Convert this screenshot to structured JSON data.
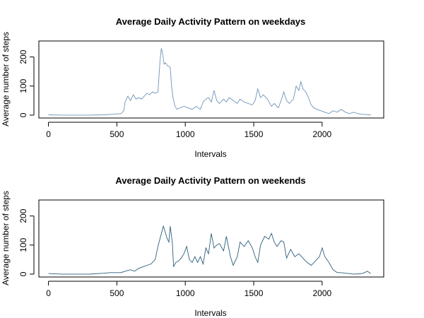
{
  "chart_data": [
    {
      "type": "line",
      "title": "Average Daily Activity Pattern on weekdays",
      "xlabel": "Intervals",
      "ylabel": "Average number of steps",
      "xlim": [
        -70,
        2450
      ],
      "ylim": [
        -10,
        255
      ],
      "x_ticks": [
        0,
        500,
        1000,
        1500,
        2000
      ],
      "y_ticks": [
        0,
        100,
        200
      ],
      "grid": false,
      "series": [
        {
          "color": "#6e93b8",
          "x": [
            0,
            100,
            200,
            300,
            400,
            470,
            500,
            530,
            550,
            560,
            580,
            600,
            620,
            640,
            660,
            680,
            700,
            720,
            740,
            760,
            780,
            800,
            815,
            825,
            835,
            845,
            855,
            870,
            890,
            900,
            910,
            925,
            940,
            960,
            990,
            1020,
            1050,
            1080,
            1110,
            1130,
            1150,
            1170,
            1190,
            1210,
            1230,
            1250,
            1280,
            1300,
            1320,
            1350,
            1380,
            1400,
            1430,
            1460,
            1490,
            1510,
            1530,
            1550,
            1570,
            1600,
            1630,
            1650,
            1680,
            1700,
            1720,
            1740,
            1760,
            1790,
            1810,
            1830,
            1845,
            1860,
            1880,
            1900,
            1920,
            1940,
            1960,
            1990,
            2020,
            2050,
            2080,
            2110,
            2140,
            2170,
            2200,
            2230,
            2260,
            2290,
            2320,
            2355
          ],
          "y": [
            1,
            0,
            0,
            0,
            1,
            3,
            4,
            5,
            15,
            45,
            65,
            50,
            70,
            55,
            60,
            55,
            65,
            75,
            70,
            80,
            75,
            80,
            185,
            230,
            210,
            175,
            180,
            170,
            165,
            100,
            60,
            30,
            20,
            25,
            30,
            25,
            20,
            30,
            20,
            45,
            55,
            60,
            45,
            85,
            50,
            40,
            55,
            45,
            60,
            50,
            40,
            55,
            45,
            40,
            35,
            50,
            90,
            60,
            70,
            55,
            30,
            40,
            25,
            50,
            80,
            50,
            40,
            55,
            100,
            85,
            115,
            90,
            80,
            60,
            35,
            25,
            20,
            15,
            10,
            5,
            15,
            10,
            20,
            10,
            5,
            10,
            5,
            3,
            2,
            1
          ]
        }
      ]
    },
    {
      "type": "line",
      "title": "Average Daily Activity Pattern on weekends",
      "xlabel": "Intervals",
      "ylabel": "Average number of steps",
      "xlim": [
        -70,
        2450
      ],
      "ylim": [
        -10,
        255
      ],
      "x_ticks": [
        0,
        500,
        1000,
        1500,
        2000
      ],
      "y_ticks": [
        0,
        100,
        200
      ],
      "grid": false,
      "series": [
        {
          "color": "#2c5f7c",
          "x": [
            0,
            100,
            200,
            300,
            400,
            450,
            500,
            530,
            560,
            600,
            630,
            660,
            690,
            720,
            750,
            780,
            800,
            820,
            840,
            850,
            865,
            880,
            890,
            905,
            915,
            930,
            950,
            970,
            990,
            1010,
            1030,
            1050,
            1070,
            1090,
            1110,
            1130,
            1150,
            1170,
            1190,
            1210,
            1230,
            1250,
            1280,
            1300,
            1330,
            1350,
            1380,
            1400,
            1430,
            1460,
            1490,
            1510,
            1530,
            1550,
            1580,
            1610,
            1630,
            1650,
            1670,
            1700,
            1720,
            1740,
            1770,
            1800,
            1830,
            1860,
            1890,
            1920,
            1950,
            1980,
            2000,
            2020,
            2050,
            2080,
            2110,
            2140,
            2170,
            2200,
            2230,
            2270,
            2300,
            2330,
            2355
          ],
          "y": [
            2,
            0,
            0,
            0,
            3,
            5,
            5,
            5,
            10,
            15,
            10,
            20,
            25,
            30,
            35,
            50,
            95,
            130,
            165,
            150,
            125,
            110,
            165,
            110,
            25,
            40,
            45,
            55,
            70,
            95,
            50,
            40,
            60,
            40,
            60,
            35,
            90,
            70,
            140,
            90,
            100,
            105,
            80,
            130,
            60,
            30,
            60,
            110,
            95,
            115,
            90,
            60,
            40,
            100,
            130,
            120,
            140,
            110,
            95,
            115,
            110,
            55,
            85,
            60,
            70,
            55,
            40,
            30,
            45,
            60,
            90,
            60,
            40,
            15,
            5,
            5,
            3,
            2,
            0,
            1,
            3,
            10,
            2
          ]
        }
      ]
    }
  ]
}
